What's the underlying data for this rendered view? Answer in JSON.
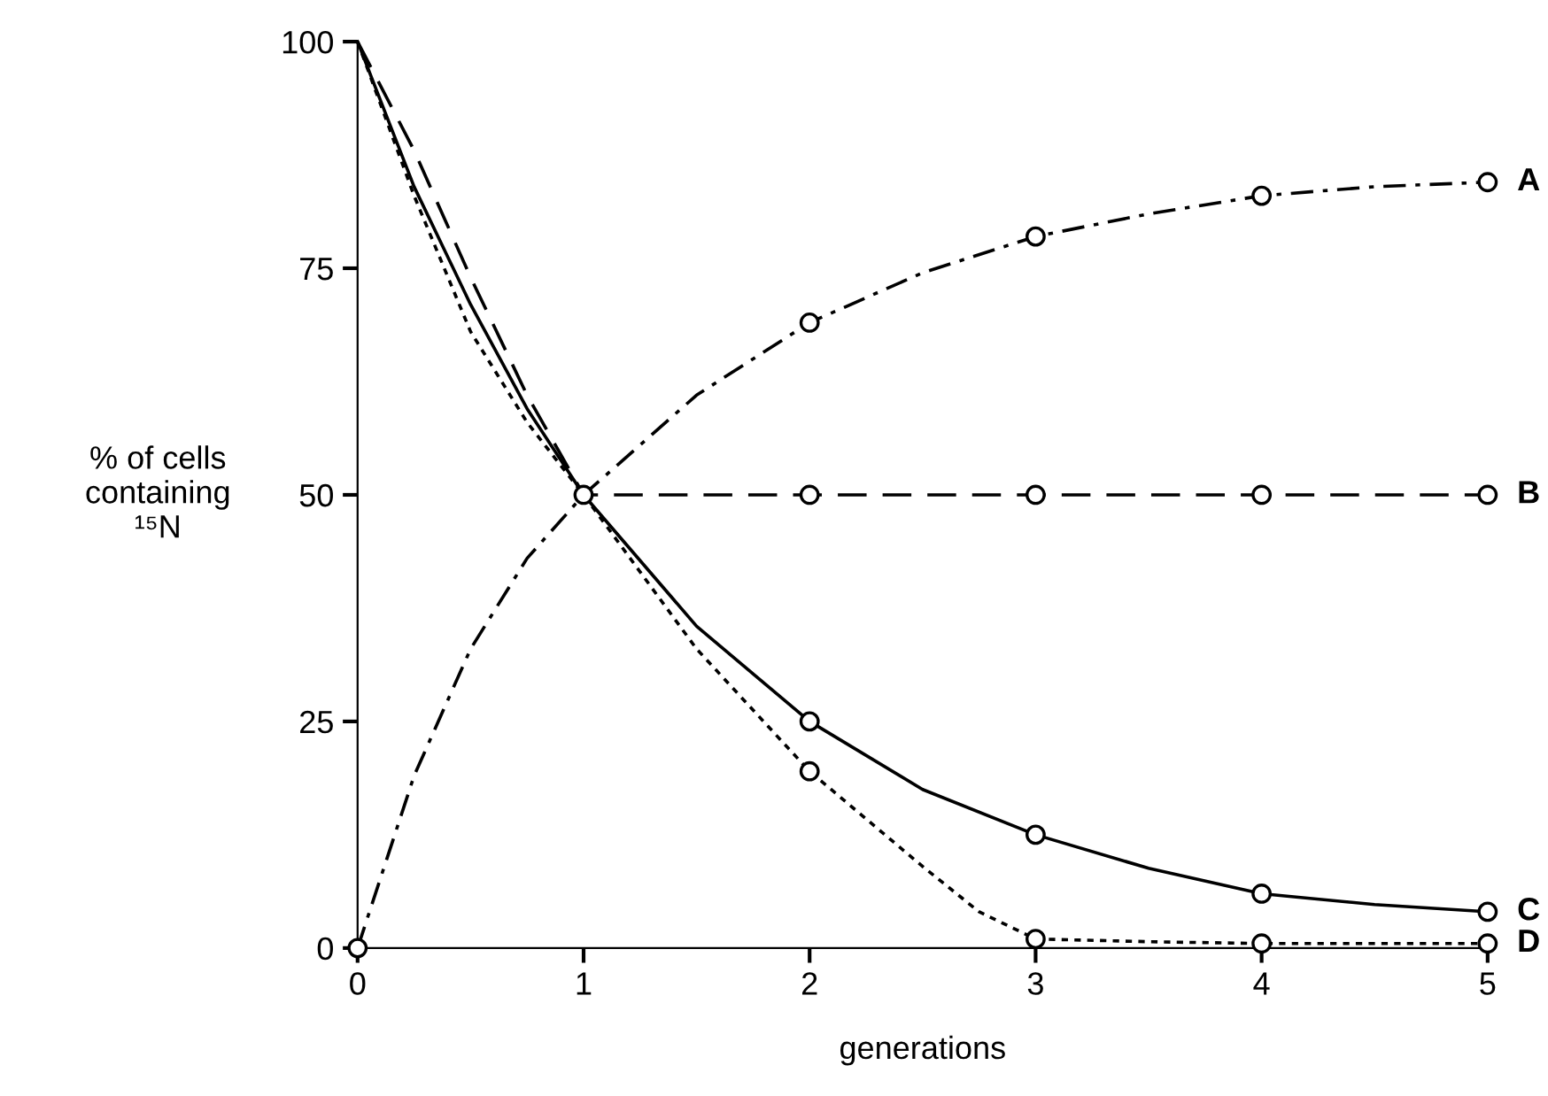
{
  "chart_data": {
    "type": "line",
    "xlabel": "generations",
    "ylabel": "% of cells\ncontaining\n¹⁵N",
    "series": [
      {
        "name": "A",
        "color": "#000000",
        "marker": "none",
        "line_style": "dashdot",
        "x": [
          0,
          0.25,
          0.5,
          0.75,
          1,
          1.5,
          2,
          2.5,
          3,
          3.5,
          4,
          4.5,
          5
        ],
        "values": [
          0,
          19,
          33,
          43,
          50,
          61,
          69,
          74.5,
          78.5,
          81,
          83,
          84,
          84.5
        ]
      },
      {
        "name": "B",
        "color": "#000000",
        "marker": "none",
        "line_style": "dashed",
        "x": [
          0,
          0.25,
          0.5,
          0.75,
          1,
          2,
          3,
          4,
          5
        ],
        "values": [
          100,
          88,
          74,
          61,
          50,
          50,
          50,
          50,
          50
        ]
      },
      {
        "name": "C",
        "color": "#000000",
        "marker": "none",
        "line_style": "solid",
        "x": [
          0,
          0.25,
          0.5,
          0.75,
          1,
          1.5,
          2,
          2.5,
          3,
          3.5,
          4,
          4.5,
          5
        ],
        "values": [
          100,
          84,
          71,
          59.5,
          50,
          35.5,
          25,
          17.5,
          12.5,
          8.8,
          6,
          4.8,
          4
        ]
      },
      {
        "name": "D",
        "color": "#000000",
        "marker": "none",
        "line_style": "dotted",
        "x": [
          0,
          0.25,
          0.5,
          0.75,
          1,
          1.5,
          2,
          2.5,
          2.75,
          3,
          3.5,
          4,
          4.5,
          5
        ],
        "values": [
          100,
          83,
          68,
          58,
          50,
          33,
          19.5,
          9,
          4,
          1,
          0.7,
          0.5,
          0.5,
          0.5
        ]
      },
      {
        "type": "scatter",
        "color": "#000000",
        "x": [
          0,
          1,
          2,
          3,
          4,
          5
        ],
        "values": [
          0,
          50,
          69,
          78.5,
          83,
          84.5
        ]
      },
      {
        "type": "scatter",
        "color": "#000000",
        "x": [
          2,
          3,
          4,
          5
        ],
        "values": [
          50,
          50,
          50,
          50
        ]
      },
      {
        "type": "scatter",
        "color": "#000000",
        "x": [
          2,
          3,
          4,
          5
        ],
        "values": [
          25,
          12.5,
          6,
          4
        ]
      },
      {
        "type": "scatter",
        "color": "#000000",
        "x": [
          2,
          3,
          4,
          5
        ],
        "values": [
          19.5,
          1,
          0.5,
          0.5
        ]
      }
    ],
    "xlim": [
      0,
      5
    ],
    "ylim": [
      0,
      100
    ],
    "xticks": [
      0,
      1,
      2,
      3,
      4,
      5
    ],
    "yticks": [
      0,
      25,
      50,
      75,
      100
    ],
    "grid": false,
    "legend": false,
    "marker": "circle"
  }
}
